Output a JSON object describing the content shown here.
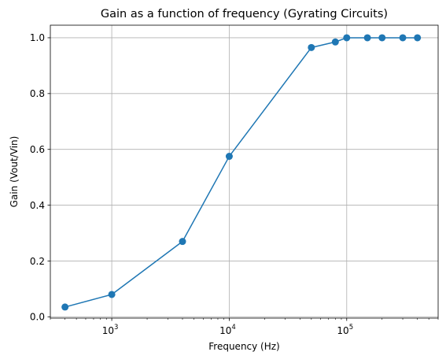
{
  "chart_data": {
    "type": "line",
    "title": "Gain as a function of frequency (Gyrating Circuits)",
    "xlabel": "Frequency (Hz)",
    "ylabel": "Gain (Vout/Vin)",
    "xscale": "log",
    "xlim": [
      300,
      600000
    ],
    "ylim": [
      -0.0047,
      1.045
    ],
    "grid": true,
    "legend": "none",
    "series": [
      {
        "color": "#1f77b4",
        "marker": "circle",
        "x": [
          400,
          1000,
          4000,
          10000,
          50000,
          80000,
          100000,
          150000,
          200000,
          300000,
          400000
        ],
        "y": [
          0.035,
          0.08,
          0.27,
          0.575,
          0.965,
          0.985,
          1.0,
          1.0,
          1.0,
          1.0,
          1.0
        ]
      }
    ],
    "xticks": [
      {
        "value": 1000,
        "base": "10",
        "exp": "3"
      },
      {
        "value": 10000,
        "base": "10",
        "exp": "4"
      },
      {
        "value": 100000,
        "base": "10",
        "exp": "5"
      }
    ],
    "yticks": [
      {
        "value": 0.0,
        "label": "0.0"
      },
      {
        "value": 0.2,
        "label": "0.2"
      },
      {
        "value": 0.4,
        "label": "0.4"
      },
      {
        "value": 0.6,
        "label": "0.6"
      },
      {
        "value": 0.8,
        "label": "0.8"
      },
      {
        "value": 1.0,
        "label": "1.0"
      }
    ]
  }
}
